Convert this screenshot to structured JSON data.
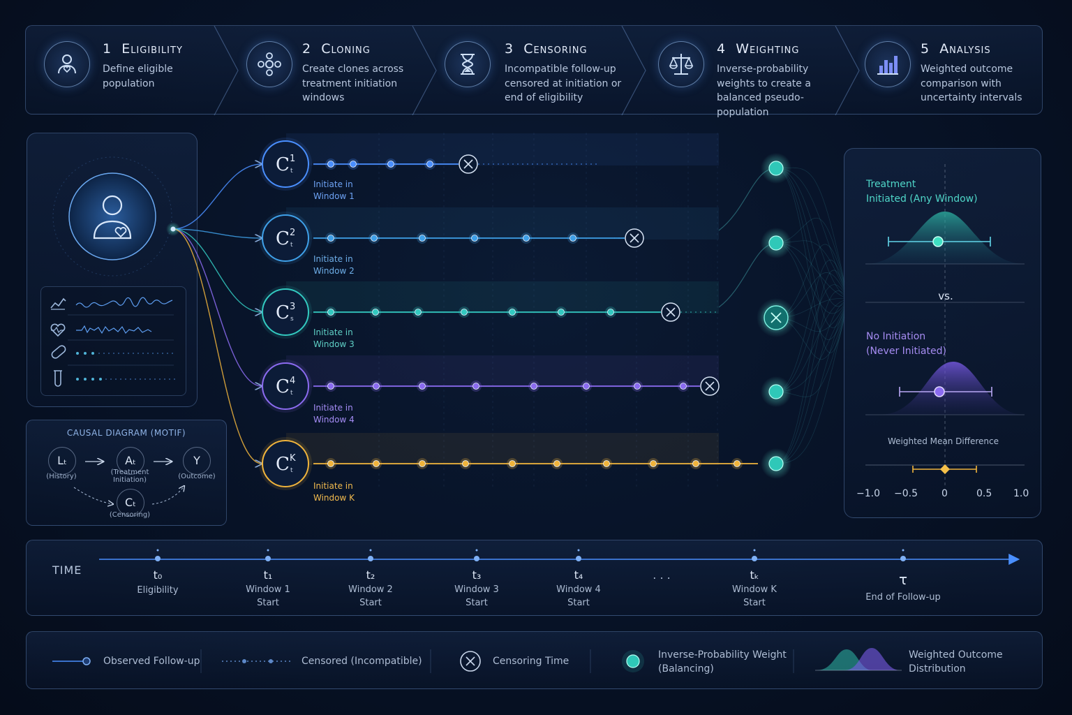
{
  "steps": [
    {
      "num": "1",
      "title": "Eligibility",
      "desc": "Define eligible population",
      "icon": "person-heart-icon"
    },
    {
      "num": "2",
      "title": "Cloning",
      "desc": "Create clones across treatment initiation windows",
      "icon": "network-icon"
    },
    {
      "num": "3",
      "title": "Censoring",
      "desc": "Incompatible follow-up censored at initiation or end of eligibility",
      "icon": "hourglass-icon"
    },
    {
      "num": "4",
      "title": "Weighting",
      "desc": "Inverse-probability weights to create a balanced pseudo-population",
      "icon": "scale-icon"
    },
    {
      "num": "5",
      "title": "Analysis",
      "desc": "Weighted outcome comparison with uncertainty intervals",
      "icon": "bar-chart-icon"
    }
  ],
  "causal": {
    "title": "CAUSAL DIAGRAM (MOTIF)",
    "nodes": [
      {
        "sym": "Lₜ",
        "label": "(History)"
      },
      {
        "sym": "Aₜ",
        "label": "(Treatment Initiation)"
      },
      {
        "sym": "Y",
        "label": "(Outcome)"
      },
      {
        "sym": "Cₜ",
        "label": "(Censoring)"
      }
    ]
  },
  "clones": [
    {
      "sym": "C",
      "sup": "1",
      "sub": "t",
      "line1": "Initiate in",
      "line2": "Window 1",
      "color": "#4a8fff"
    },
    {
      "sym": "C",
      "sup": "2",
      "sub": "t",
      "line1": "Initiate in",
      "line2": "Window 2",
      "color": "#3fa0e8"
    },
    {
      "sym": "C",
      "sup": "3",
      "sub": "s",
      "line1": "Initiate in",
      "line2": "Window 3",
      "color": "#33c9c0"
    },
    {
      "sym": "C",
      "sup": "4",
      "sub": "t",
      "line1": "Initiate in",
      "line2": "Window 4",
      "color": "#8b6bf0"
    },
    {
      "sym": "C",
      "sup": "K",
      "sub": "t",
      "line1": "Initiate in",
      "line2": "Window K",
      "color": "#f0b43c"
    }
  ],
  "result": {
    "treat_line1": "Treatment",
    "treat_line2": "Initiated (Any Window)",
    "vs": "vs.",
    "none_line1": "No Initiation",
    "none_line2": "(Never Initiated)",
    "wmd": "Weighted Mean Difference",
    "axis": [
      "−1.0",
      "−0.5",
      "0",
      "0.5",
      "1.0"
    ]
  },
  "time": {
    "label": "TIME",
    "ticks": [
      {
        "sym": "t₀",
        "l1": "Eligibility",
        "l2": ""
      },
      {
        "sym": "t₁",
        "l1": "Window 1",
        "l2": "Start"
      },
      {
        "sym": "t₂",
        "l1": "Window 2",
        "l2": "Start"
      },
      {
        "sym": "t₃",
        "l1": "Window 3",
        "l2": "Start"
      },
      {
        "sym": "t₄",
        "l1": "Window 4",
        "l2": "Start"
      },
      {
        "sym": "tₖ",
        "l1": "Window K",
        "l2": "Start"
      },
      {
        "sym": "τ",
        "l1": "End of Follow-up",
        "l2": ""
      }
    ],
    "ellipsis": ". . ."
  },
  "legend": [
    {
      "l1": "Observed Follow-up",
      "l2": ""
    },
    {
      "l1": "Censored (Incompatible)",
      "l2": ""
    },
    {
      "l1": "Censoring Time",
      "l2": ""
    },
    {
      "l1": "Inverse-Probability Weight",
      "l2": "(Balancing)"
    },
    {
      "l1": "Weighted Outcome",
      "l2": "Distribution"
    }
  ]
}
